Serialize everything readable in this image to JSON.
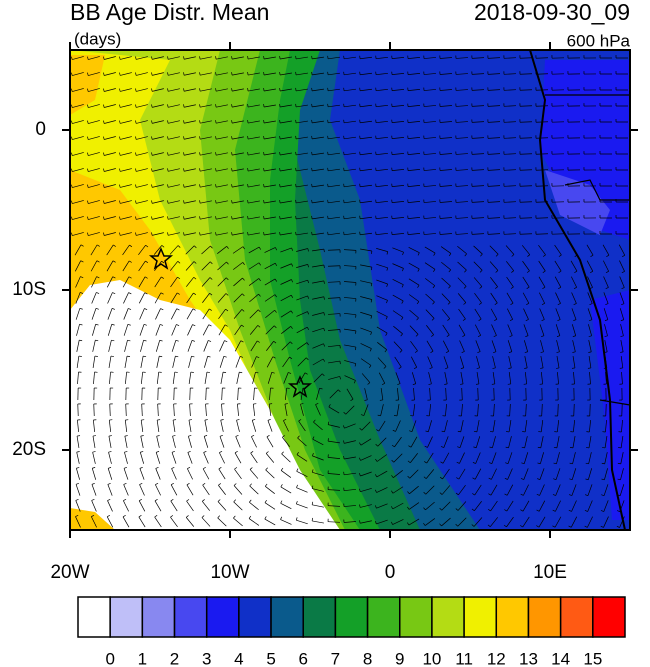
{
  "map": {
    "title": "BB Age Distr. Mean",
    "units": "(days)",
    "date": "2018-09-30_09",
    "level": "600 hPa",
    "xlim": [
      -20,
      15
    ],
    "ylim": [
      -25,
      5
    ],
    "xticks": [
      {
        "value": -20,
        "label": "20W"
      },
      {
        "value": -10,
        "label": "10W"
      },
      0,
      {
        "value": 10,
        "label": "10E"
      }
    ],
    "yticks": [
      0,
      {
        "value": -10,
        "label": "10S"
      },
      {
        "value": -20,
        "label": "20S"
      }
    ],
    "colorbar": {
      "levels": [
        0,
        1,
        2,
        3,
        4,
        5,
        6,
        7,
        8,
        9,
        10,
        11,
        12,
        13,
        14,
        15
      ],
      "colors": [
        "#ffffff",
        "#bfbff8",
        "#8888f0",
        "#4848f0",
        "#1a1af0",
        "#1030c8",
        "#0a5a8c",
        "#0a7a46",
        "#14a028",
        "#3cb41e",
        "#78c814",
        "#b4dc14",
        "#f0f000",
        "#ffc800",
        "#ff9600",
        "#ff5a14",
        "#ff0000"
      ]
    }
  }
}
